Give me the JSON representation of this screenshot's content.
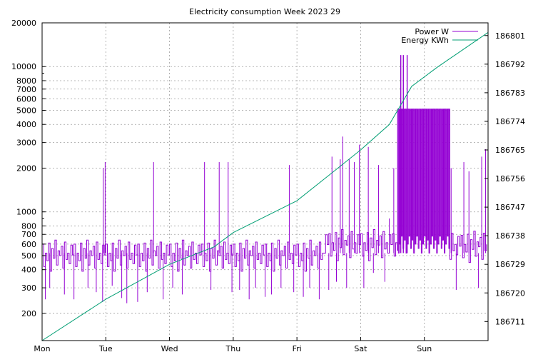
{
  "chart_data": {
    "type": "line",
    "title": "Electricity consumption Week 2023 29",
    "xlabel": "",
    "ylabel": "",
    "y2label": "",
    "x_ticks": [
      "Mon",
      "Tue",
      "Wed",
      "Thu",
      "Fri",
      "Sat",
      "Sun"
    ],
    "x_range_days": [
      0,
      7
    ],
    "y_scale": "log",
    "ylim": [
      130,
      20000
    ],
    "y_ticks": [
      200,
      300,
      400,
      500,
      600,
      700,
      800,
      1000,
      2000,
      3000,
      4000,
      5000,
      6000,
      7000,
      8000,
      10000,
      20000
    ],
    "y2_scale": "linear",
    "y2lim": [
      186705,
      186805
    ],
    "y2_ticks": [
      186711,
      186720,
      186729,
      186738,
      186747,
      186756,
      186765,
      186774,
      186783,
      186792,
      186801
    ],
    "grid": true,
    "legend_position": "top-right",
    "colors": {
      "power": "#9400d3",
      "energy": "#009e73",
      "grid": "#a0a0a0"
    },
    "series": [
      {
        "name": "Power W",
        "axis": "y",
        "style": "step",
        "base_pattern": [
          600,
          420,
          520,
          460,
          610,
          390,
          560,
          480,
          640,
          430,
          540,
          500,
          580,
          410,
          620,
          470,
          520,
          440,
          590,
          505
        ],
        "spikes": [
          {
            "day": 0.05,
            "value": 250
          },
          {
            "day": 0.12,
            "value": 300
          },
          {
            "day": 0.35,
            "value": 270
          },
          {
            "day": 0.5,
            "value": 250
          },
          {
            "day": 0.72,
            "value": 300
          },
          {
            "day": 0.85,
            "value": 280
          },
          {
            "day": 0.96,
            "value": 2000
          },
          {
            "day": 0.99,
            "value": 2200
          },
          {
            "day": 0.95,
            "value": 240
          },
          {
            "day": 1.1,
            "value": 310
          },
          {
            "day": 1.25,
            "value": 255
          },
          {
            "day": 1.33,
            "value": 235
          },
          {
            "day": 1.5,
            "value": 240
          },
          {
            "day": 1.65,
            "value": 280
          },
          {
            "day": 1.75,
            "value": 2200
          },
          {
            "day": 1.9,
            "value": 250
          },
          {
            "day": 2.05,
            "value": 300
          },
          {
            "day": 2.2,
            "value": 270
          },
          {
            "day": 2.55,
            "value": 2200
          },
          {
            "day": 2.65,
            "value": 290
          },
          {
            "day": 2.78,
            "value": 2200
          },
          {
            "day": 2.92,
            "value": 2200
          },
          {
            "day": 2.98,
            "value": 280
          },
          {
            "day": 3.1,
            "value": 290
          },
          {
            "day": 3.25,
            "value": 250
          },
          {
            "day": 3.35,
            "value": 300
          },
          {
            "day": 3.5,
            "value": 260
          },
          {
            "day": 3.6,
            "value": 270
          },
          {
            "day": 3.75,
            "value": 300
          },
          {
            "day": 3.88,
            "value": 2100
          },
          {
            "day": 3.95,
            "value": 280
          },
          {
            "day": 4.1,
            "value": 260
          },
          {
            "day": 4.2,
            "value": 300
          },
          {
            "day": 4.35,
            "value": 250
          },
          {
            "day": 4.5,
            "value": 290
          },
          {
            "day": 4.55,
            "value": 2400
          },
          {
            "day": 4.62,
            "value": 330
          },
          {
            "day": 4.68,
            "value": 2300
          },
          {
            "day": 4.72,
            "value": 3300
          },
          {
            "day": 4.78,
            "value": 300
          },
          {
            "day": 4.82,
            "value": 2300
          },
          {
            "day": 4.9,
            "value": 2200
          },
          {
            "day": 4.98,
            "value": 2900
          },
          {
            "day": 5.05,
            "value": 300
          },
          {
            "day": 5.12,
            "value": 2800
          },
          {
            "day": 5.2,
            "value": 380
          },
          {
            "day": 5.28,
            "value": 2100
          },
          {
            "day": 5.38,
            "value": 330
          },
          {
            "day": 5.45,
            "value": 900
          },
          {
            "day": 5.52,
            "value": 2000
          }
        ],
        "sat_peaks_day": [
          5.63,
          5.67,
          5.73
        ],
        "sat_peak_value": 12000,
        "dense_block": {
          "start_day": 5.58,
          "end_day": 6.4,
          "high": 5100,
          "low": 520
        },
        "sun_tail": [
          {
            "day": 6.42,
            "value": 2000
          },
          {
            "day": 6.5,
            "value": 290
          },
          {
            "day": 6.62,
            "value": 2200
          },
          {
            "day": 6.7,
            "value": 1900
          },
          {
            "day": 6.85,
            "value": 300
          },
          {
            "day": 6.9,
            "value": 2400
          },
          {
            "day": 6.96,
            "value": 2700
          }
        ]
      },
      {
        "name": "Energy KWh",
        "axis": "y2",
        "style": "line",
        "points": [
          {
            "day": 0.0,
            "value": 186705
          },
          {
            "day": 1.0,
            "value": 186718
          },
          {
            "day": 2.0,
            "value": 186729
          },
          {
            "day": 2.7,
            "value": 186734.5
          },
          {
            "day": 3.0,
            "value": 186739
          },
          {
            "day": 4.0,
            "value": 186749
          },
          {
            "day": 4.5,
            "value": 186757
          },
          {
            "day": 5.0,
            "value": 186765
          },
          {
            "day": 5.45,
            "value": 186773
          },
          {
            "day": 5.8,
            "value": 186785
          },
          {
            "day": 6.2,
            "value": 186791
          },
          {
            "day": 7.0,
            "value": 186802
          }
        ]
      }
    ]
  }
}
